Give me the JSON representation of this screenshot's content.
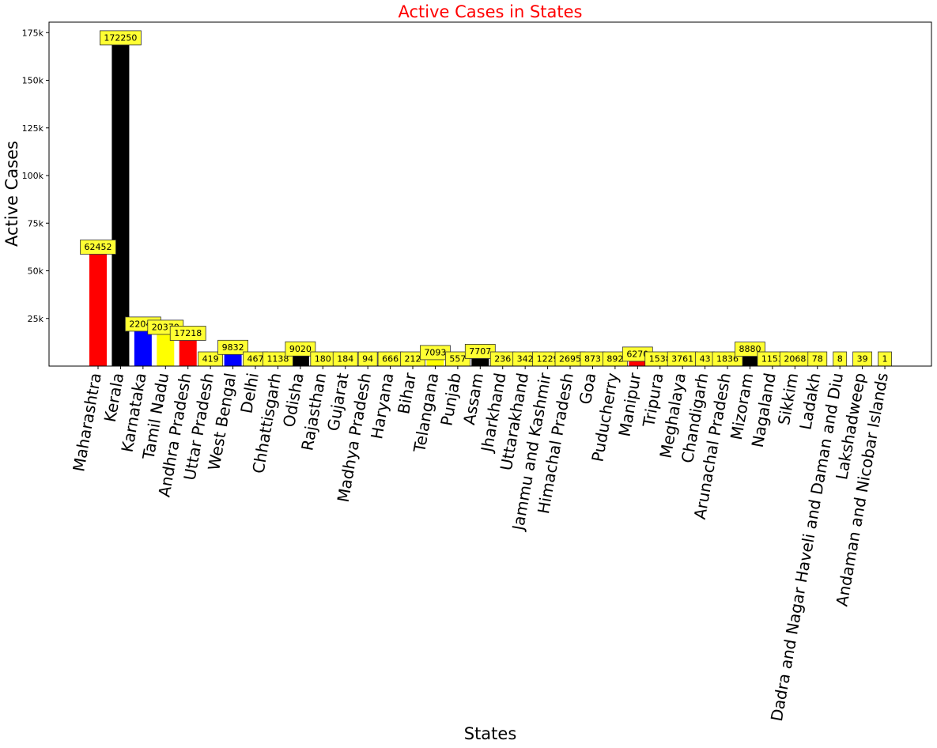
{
  "chart_data": {
    "type": "bar",
    "title": "Active Cases in States",
    "title_color": "#ff0000",
    "xlabel": "States",
    "ylabel": "Active Cases",
    "ylim": [
      0,
      180500
    ],
    "yticks": [
      {
        "value": 25000,
        "label": "25k"
      },
      {
        "value": 50000,
        "label": "50k"
      },
      {
        "value": 75000,
        "label": "75k"
      },
      {
        "value": 100000,
        "label": "100k"
      },
      {
        "value": 125000,
        "label": "125k"
      },
      {
        "value": 150000,
        "label": "150k"
      },
      {
        "value": 175000,
        "label": "175k"
      }
    ],
    "grid": false,
    "bar_color_cycle": [
      "#ff0000",
      "#000000",
      "#0000ff",
      "#ffff00"
    ],
    "label_box_color": "#ffff33",
    "categories": [
      "Maharashtra",
      "Kerala",
      "Karnataka",
      "Tamil Nadu",
      "Andhra Pradesh",
      "Uttar Pradesh",
      "West Bengal",
      "Delhi",
      "Chhattisgarh",
      "Odisha",
      "Rajasthan",
      "Gujarat",
      "Madhya Pradesh",
      "Haryana",
      "Bihar",
      "Telangana",
      "Punjab",
      "Assam",
      "Jharkhand",
      "Uttarakhand",
      "Jammu and Kashmir",
      "Himachal Pradesh",
      "Goa",
      "Puducherry",
      "Manipur",
      "Tripura",
      "Meghalaya",
      "Chandigarh",
      "Arunachal Pradesh",
      "Mizoram",
      "Nagaland",
      "Sikkim",
      "Ladakh",
      "Dadra and Nagar Haveli and Daman and Diu",
      "Lakshadweep",
      "Andaman and Nicobar Islands"
    ],
    "values": [
      62452,
      172250,
      22040,
      20370,
      17218,
      419,
      9832,
      467,
      1138,
      9020,
      180,
      184,
      94,
      666,
      212,
      7093,
      557,
      7707,
      236,
      342,
      1229,
      2695,
      873,
      892,
      6270,
      1538,
      3761,
      43,
      1836,
      8880,
      1153,
      2068,
      78,
      8,
      39,
      1
    ],
    "data_labels": [
      "62452",
      "172250",
      "22040",
      "20370",
      "17218",
      "419",
      "9832",
      "467",
      "1138",
      "9020",
      "180",
      "184",
      "94",
      "666",
      "212",
      "7093",
      "557",
      "7707",
      "236",
      "342",
      "1229",
      "2695",
      "873",
      "892",
      "6270",
      "1538",
      "3761",
      "43",
      "1836",
      "8880",
      "1153",
      "2068",
      "78",
      "8",
      "39",
      "1"
    ]
  }
}
